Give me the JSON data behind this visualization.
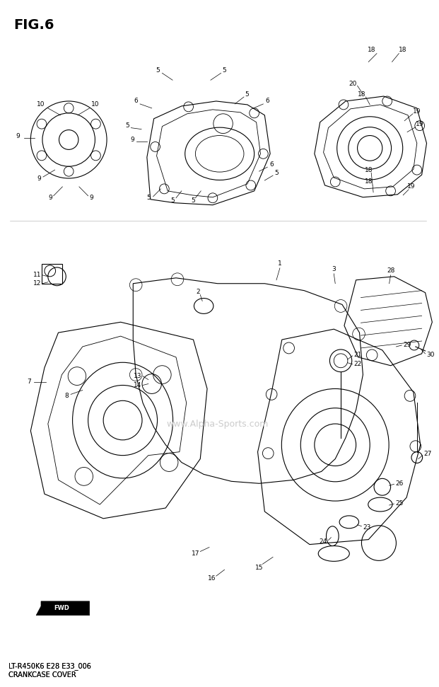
{
  "title": "FIG.6",
  "subtitle_line1": "LT-R450K6 E28 E33_006",
  "subtitle_line2": "CRANKCASE COVER",
  "watermark": "www.Alpha-Sports.com",
  "bg_color": "#ffffff",
  "line_color": "#000000",
  "text_color": "#000000",
  "fig_width": 6.21,
  "fig_height": 9.71,
  "dpi": 100
}
